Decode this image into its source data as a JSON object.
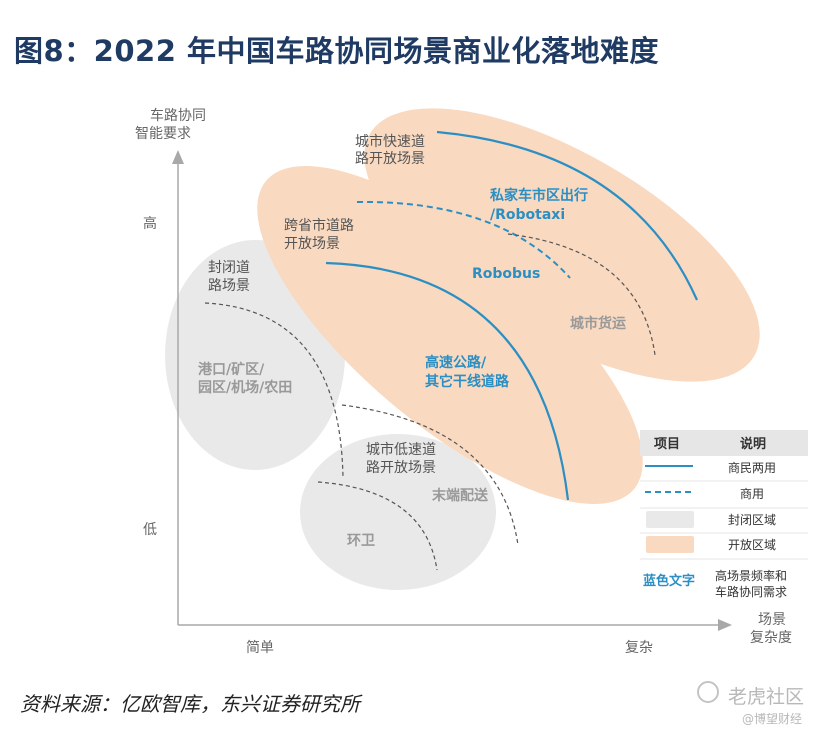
{
  "title": "图8：2022 年中国车路协同场景商业化落地难度",
  "axes": {
    "y_title_1": "车路协同",
    "y_title_2": "智能要求",
    "y_high": "高",
    "y_low": "低",
    "x_title_1": "场景",
    "x_title_2": "复杂度",
    "x_low": "简单",
    "x_high": "复杂"
  },
  "regions": {
    "urban_expressway": [
      "城市快速道",
      "路开放场景"
    ],
    "intercity_road": [
      "跨省市道路",
      "开放场景"
    ],
    "closed_road": [
      "封闭道",
      "路场景"
    ],
    "closed_places": [
      "港口/矿区/",
      "园区/机场/农田"
    ],
    "low_speed": [
      "城市低速道",
      "路开放场景"
    ]
  },
  "scenes": {
    "robotaxi": [
      "私家车市区出行",
      "/Robotaxi"
    ],
    "robobus": "Robobus",
    "highway": [
      "高速公路/",
      "其它干线道路"
    ],
    "urban_freight": "城市货运",
    "last_mile": "末端配送",
    "sanitation": "环卫"
  },
  "legend": {
    "header_item": "项目",
    "header_desc": "说明",
    "rows": [
      "商民两用",
      "商用",
      "封闭区域",
      "开放区域"
    ],
    "blue_text_label": "蓝色文字",
    "blue_text_desc": [
      "高场景频率和",
      "车路协同需求"
    ]
  },
  "colors": {
    "open_region": "#f9d9c0",
    "closed_region": "#e9e9e9",
    "blue": "#2b8fc4",
    "title": "#1f3b63"
  },
  "source": "资料来源：亿欧智库，东兴证券研究所",
  "watermark": {
    "brand": "老虎社区",
    "sub": "@博望财经"
  }
}
